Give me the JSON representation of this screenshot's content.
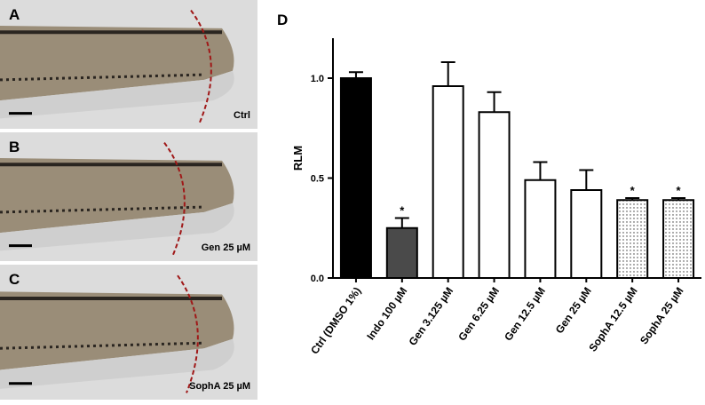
{
  "panels": [
    {
      "label": "A",
      "caption": "Ctrl"
    },
    {
      "label": "B",
      "caption": "Gen 25 µM"
    },
    {
      "label": "C",
      "caption": "SophA 25 µM"
    }
  ],
  "chart_data": {
    "type": "bar",
    "panel_label": "D",
    "y_label": "RLM",
    "categories": [
      "Ctrl (DMSO 1%)",
      "Indo 100 µM",
      "Gen 3.125 µM",
      "Gen 6.25 µM",
      "Gen 12.5 µM",
      "Gen 25 µM",
      "SophA 12.5 µM",
      "SophA 25 µM"
    ],
    "values": [
      1.0,
      0.25,
      0.96,
      0.83,
      0.49,
      0.44,
      0.39,
      0.39
    ],
    "errors": [
      0.03,
      0.05,
      0.12,
      0.1,
      0.09,
      0.1,
      0.01,
      0.01
    ],
    "colors": [
      "#000000",
      "#4a4a4a",
      "#ffffff",
      "#ffffff",
      "#ffffff",
      "#ffffff",
      "#ffffff",
      "#ffffff"
    ],
    "dotted": [
      false,
      false,
      false,
      false,
      false,
      false,
      true,
      true
    ],
    "significance": [
      null,
      "*",
      null,
      null,
      null,
      null,
      "*",
      "*"
    ],
    "ylim": [
      0,
      1.2
    ],
    "yticks": [
      {
        "value": 0,
        "label": "0.0"
      },
      {
        "value": 0.5,
        "label": "0.5"
      },
      {
        "value": 1,
        "label": "1.0"
      }
    ]
  }
}
